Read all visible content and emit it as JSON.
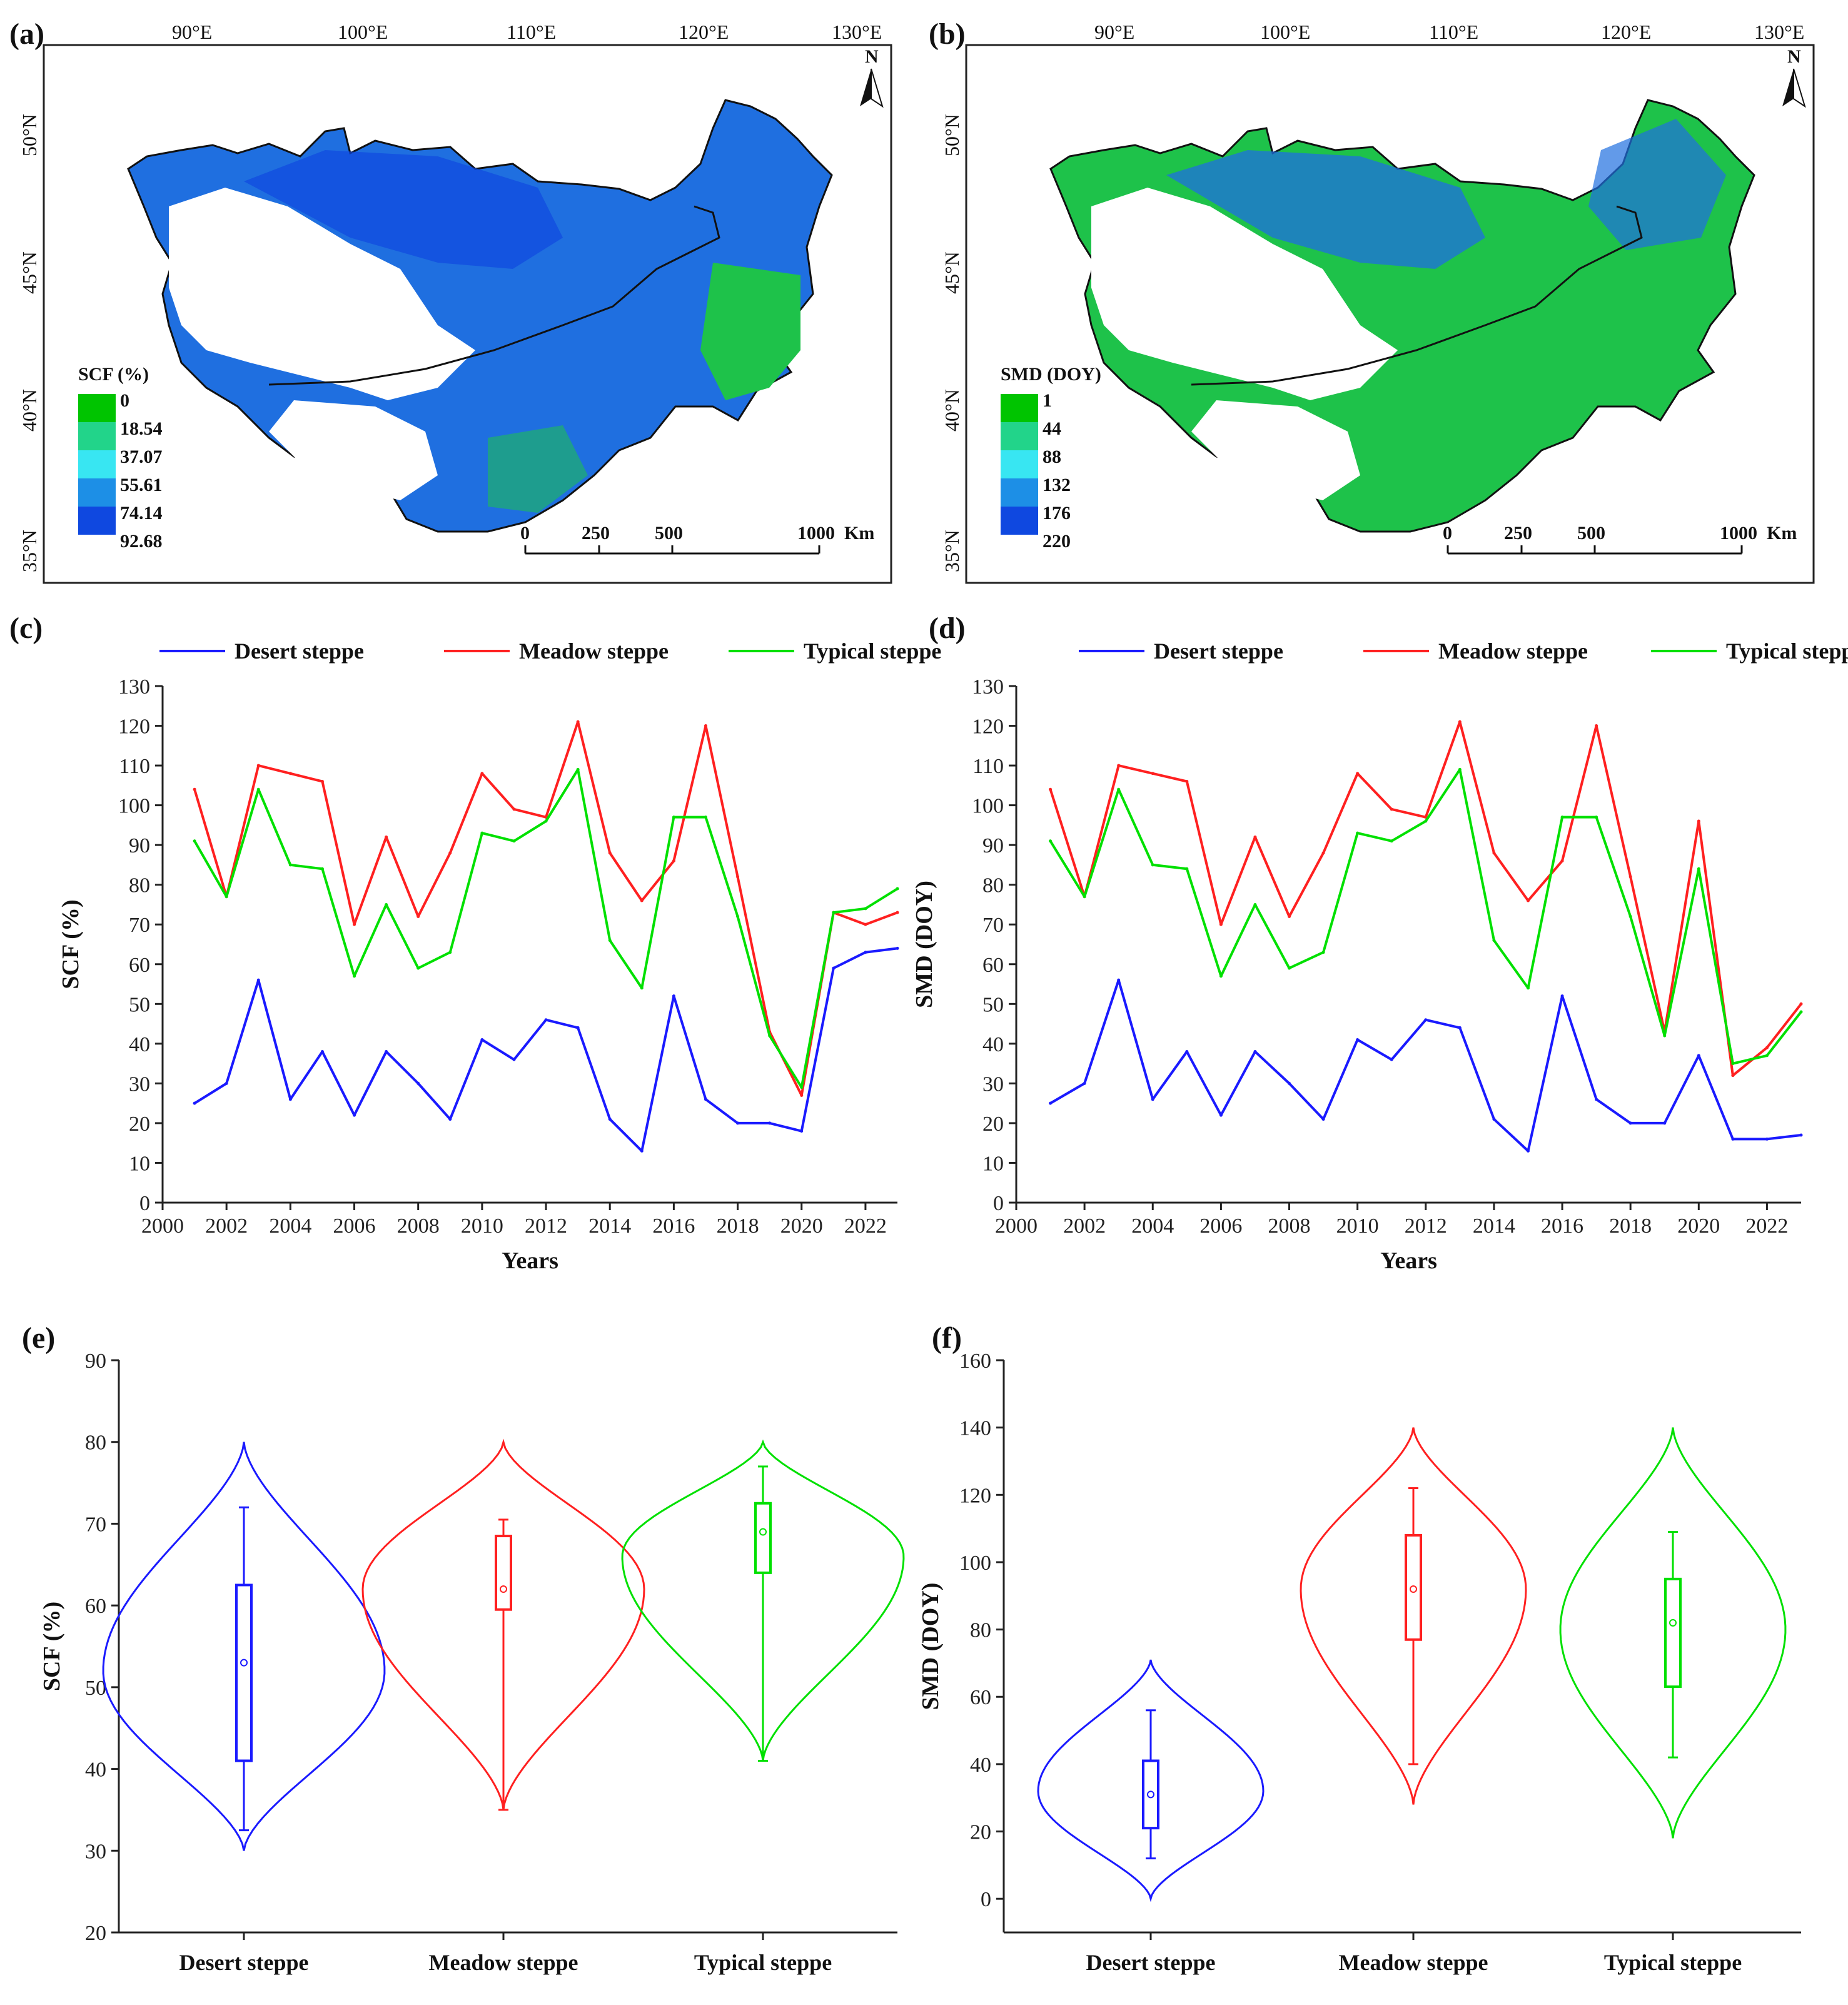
{
  "colors": {
    "desert": "#1a1aff",
    "meadow": "#ff2020",
    "typical": "#00e000",
    "map_green": "#1ec24a",
    "map_blue": "#1f6fe0"
  },
  "maps": [
    {
      "panel": "(a)",
      "legend_title": "SCF (%)",
      "legend_values": [
        "0",
        "18.54",
        "37.07",
        "55.61",
        "74.14",
        "92.68"
      ],
      "legend_colors": [
        "#00c400",
        "#22d48a",
        "#38e6f2",
        "#1d8fe6",
        "#0f48e0"
      ],
      "lon_labels": [
        "90°E",
        "100°E",
        "110°E",
        "120°E",
        "130°E"
      ],
      "lat_labels": [
        "50°N",
        "45°N",
        "40°N",
        "35°N"
      ],
      "scale_labels": [
        "0",
        "250",
        "500",
        "1000",
        "Km"
      ],
      "north": "N"
    },
    {
      "panel": "(b)",
      "legend_title": "SMD (DOY)",
      "legend_values": [
        "1",
        "44",
        "88",
        "132",
        "176",
        "220"
      ],
      "legend_colors": [
        "#00c400",
        "#22d48a",
        "#38e6f2",
        "#1d8fe6",
        "#0f48e0"
      ],
      "lon_labels": [
        "90°E",
        "100°E",
        "110°E",
        "120°E",
        "130°E"
      ],
      "lat_labels": [
        "50°N",
        "45°N",
        "40°N",
        "35°N"
      ],
      "scale_labels": [
        "0",
        "250",
        "500",
        "1000",
        "Km"
      ],
      "north": "N"
    }
  ],
  "chart_data": [
    {
      "panel": "(c)",
      "type": "line",
      "xlabel": "Years",
      "ylabel": "SCF (%)",
      "xlim": [
        2000,
        2023
      ],
      "ylim": [
        0,
        130
      ],
      "xticks": [
        2000,
        2002,
        2004,
        2006,
        2008,
        2010,
        2012,
        2014,
        2016,
        2018,
        2020,
        2022
      ],
      "yticks": [
        0,
        10,
        20,
        30,
        40,
        50,
        60,
        70,
        80,
        90,
        100,
        110,
        120,
        130
      ],
      "x": [
        2001,
        2002,
        2003,
        2004,
        2005,
        2006,
        2007,
        2008,
        2009,
        2010,
        2011,
        2012,
        2013,
        2014,
        2015,
        2016,
        2017,
        2018,
        2019,
        2020,
        2021,
        2022,
        2023
      ],
      "series": [
        {
          "name": "Desert steppe",
          "color_key": "desert",
          "values": [
            25,
            30,
            56,
            26,
            38,
            22,
            38,
            30,
            21,
            41,
            36,
            46,
            44,
            21,
            13,
            52,
            26,
            20,
            20,
            18,
            59,
            63,
            64
          ]
        },
        {
          "name": "Meadow steppe",
          "color_key": "meadow",
          "values": [
            104,
            77,
            110,
            108,
            106,
            70,
            92,
            72,
            88,
            108,
            99,
            97,
            121,
            88,
            76,
            86,
            120,
            82,
            43,
            27,
            73,
            70,
            73
          ]
        },
        {
          "name": "Typical steppe",
          "color_key": "typical",
          "values": [
            91,
            77,
            104,
            85,
            84,
            57,
            75,
            59,
            63,
            93,
            91,
            96,
            109,
            66,
            54,
            97,
            97,
            72,
            42,
            29,
            73,
            74,
            79
          ]
        }
      ]
    },
    {
      "panel": "(d)",
      "type": "line",
      "xlabel": "Years",
      "ylabel": "SMD (DOY)",
      "xlim": [
        2000,
        2023
      ],
      "ylim": [
        0,
        130
      ],
      "xticks": [
        2000,
        2002,
        2004,
        2006,
        2008,
        2010,
        2012,
        2014,
        2016,
        2018,
        2020,
        2022
      ],
      "yticks": [
        0,
        10,
        20,
        30,
        40,
        50,
        60,
        70,
        80,
        90,
        100,
        110,
        120,
        130
      ],
      "x": [
        2001,
        2002,
        2003,
        2004,
        2005,
        2006,
        2007,
        2008,
        2009,
        2010,
        2011,
        2012,
        2013,
        2014,
        2015,
        2016,
        2017,
        2018,
        2019,
        2020,
        2021,
        2022,
        2023
      ],
      "series": [
        {
          "name": "Desert steppe",
          "color_key": "desert",
          "values": [
            25,
            30,
            56,
            26,
            38,
            22,
            38,
            30,
            21,
            41,
            36,
            46,
            44,
            21,
            13,
            52,
            26,
            20,
            20,
            37,
            16,
            16,
            17
          ]
        },
        {
          "name": "Meadow steppe",
          "color_key": "meadow",
          "values": [
            104,
            77,
            110,
            108,
            106,
            70,
            92,
            72,
            88,
            108,
            99,
            97,
            121,
            88,
            76,
            86,
            120,
            82,
            43,
            96,
            32,
            39,
            50
          ]
        },
        {
          "name": "Typical steppe",
          "color_key": "typical",
          "values": [
            91,
            77,
            104,
            85,
            84,
            57,
            75,
            59,
            63,
            93,
            91,
            96,
            109,
            66,
            54,
            97,
            97,
            72,
            42,
            84,
            35,
            37,
            48
          ]
        }
      ]
    },
    {
      "panel": "(e)",
      "type": "violin",
      "ylabel": "SCF (%)",
      "ylim": [
        20,
        90
      ],
      "yticks": [
        20,
        30,
        40,
        50,
        60,
        70,
        80,
        90
      ],
      "categories": [
        "Desert steppe",
        "Meadow steppe",
        "Typical steppe"
      ],
      "groups": [
        {
          "name": "Desert steppe",
          "color_key": "desert",
          "violin_min": 30,
          "violin_max": 80,
          "mode": 52,
          "whisker_low": 32.5,
          "q1": 41,
          "median": 53,
          "q3": 62.5,
          "whisker_high": 72
        },
        {
          "name": "Meadow steppe",
          "color_key": "meadow",
          "violin_min": 35,
          "violin_max": 80,
          "mode": 62,
          "whisker_low": 35,
          "q1": 59.5,
          "median": 62,
          "q3": 68.5,
          "whisker_high": 70.5
        },
        {
          "name": "Typical steppe",
          "color_key": "typical",
          "violin_min": 41,
          "violin_max": 80,
          "mode": 66,
          "whisker_low": 41,
          "q1": 64,
          "median": 69,
          "q3": 72.5,
          "whisker_high": 77
        }
      ]
    },
    {
      "panel": "(f)",
      "type": "violin",
      "ylabel": "SMD (DOY)",
      "ylim": [
        -10,
        160
      ],
      "yticks": [
        0,
        20,
        40,
        60,
        80,
        100,
        120,
        140,
        160
      ],
      "categories": [
        "Desert steppe",
        "Meadow steppe",
        "Typical steppe"
      ],
      "groups": [
        {
          "name": "Desert steppe",
          "color_key": "desert",
          "violin_min": 0,
          "violin_max": 71,
          "mode": 32,
          "whisker_low": 12,
          "q1": 21,
          "median": 31,
          "q3": 41,
          "whisker_high": 56
        },
        {
          "name": "Meadow steppe",
          "color_key": "meadow",
          "violin_min": 28,
          "violin_max": 140,
          "mode": 92,
          "whisker_low": 40,
          "q1": 77,
          "median": 92,
          "q3": 108,
          "whisker_high": 122
        },
        {
          "name": "Typical steppe",
          "color_key": "typical",
          "violin_min": 18,
          "violin_max": 140,
          "mode": 80,
          "whisker_low": 42,
          "q1": 63,
          "median": 82,
          "q3": 95,
          "whisker_high": 109
        }
      ]
    }
  ]
}
